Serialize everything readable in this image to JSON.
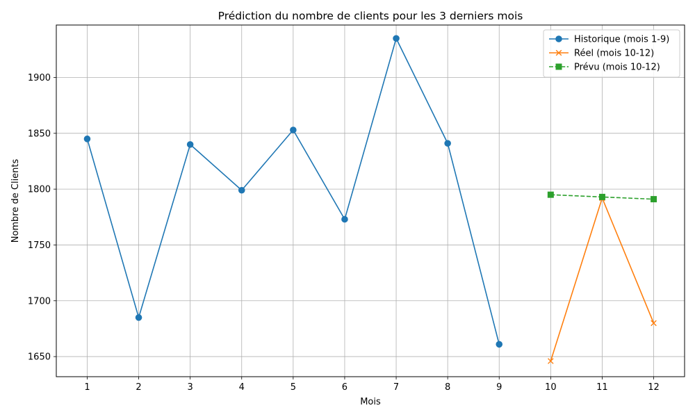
{
  "chart_data": {
    "type": "line",
    "title": "Prédiction du nombre de clients pour les 3 derniers mois",
    "xlabel": "Mois",
    "ylabel": "Nombre de Clients",
    "xlim": [
      0.4,
      12.6
    ],
    "ylim": [
      1632,
      1947
    ],
    "x_ticks": [
      1,
      2,
      3,
      4,
      5,
      6,
      7,
      8,
      9,
      10,
      11,
      12
    ],
    "y_ticks": [
      1650,
      1700,
      1750,
      1800,
      1850,
      1900
    ],
    "grid": true,
    "legend_position": "top-right",
    "series": [
      {
        "name": "Historique (mois 1-9)",
        "color": "#1f77b4",
        "marker": "circle",
        "line_style": "solid",
        "x": [
          1,
          2,
          3,
          4,
          5,
          6,
          7,
          8,
          9
        ],
        "y": [
          1845,
          1685,
          1840,
          1799,
          1853,
          1773,
          1935,
          1841,
          1661
        ]
      },
      {
        "name": "Réel (mois 10-12)",
        "color": "#ff7f0e",
        "marker": "x",
        "line_style": "solid",
        "x": [
          10,
          11,
          12
        ],
        "y": [
          1646,
          1792,
          1680
        ]
      },
      {
        "name": "Prévu (mois 10-12)",
        "color": "#2ca02c",
        "marker": "square",
        "line_style": "dashed",
        "x": [
          10,
          11,
          12
        ],
        "y": [
          1795,
          1793,
          1791
        ]
      }
    ]
  }
}
